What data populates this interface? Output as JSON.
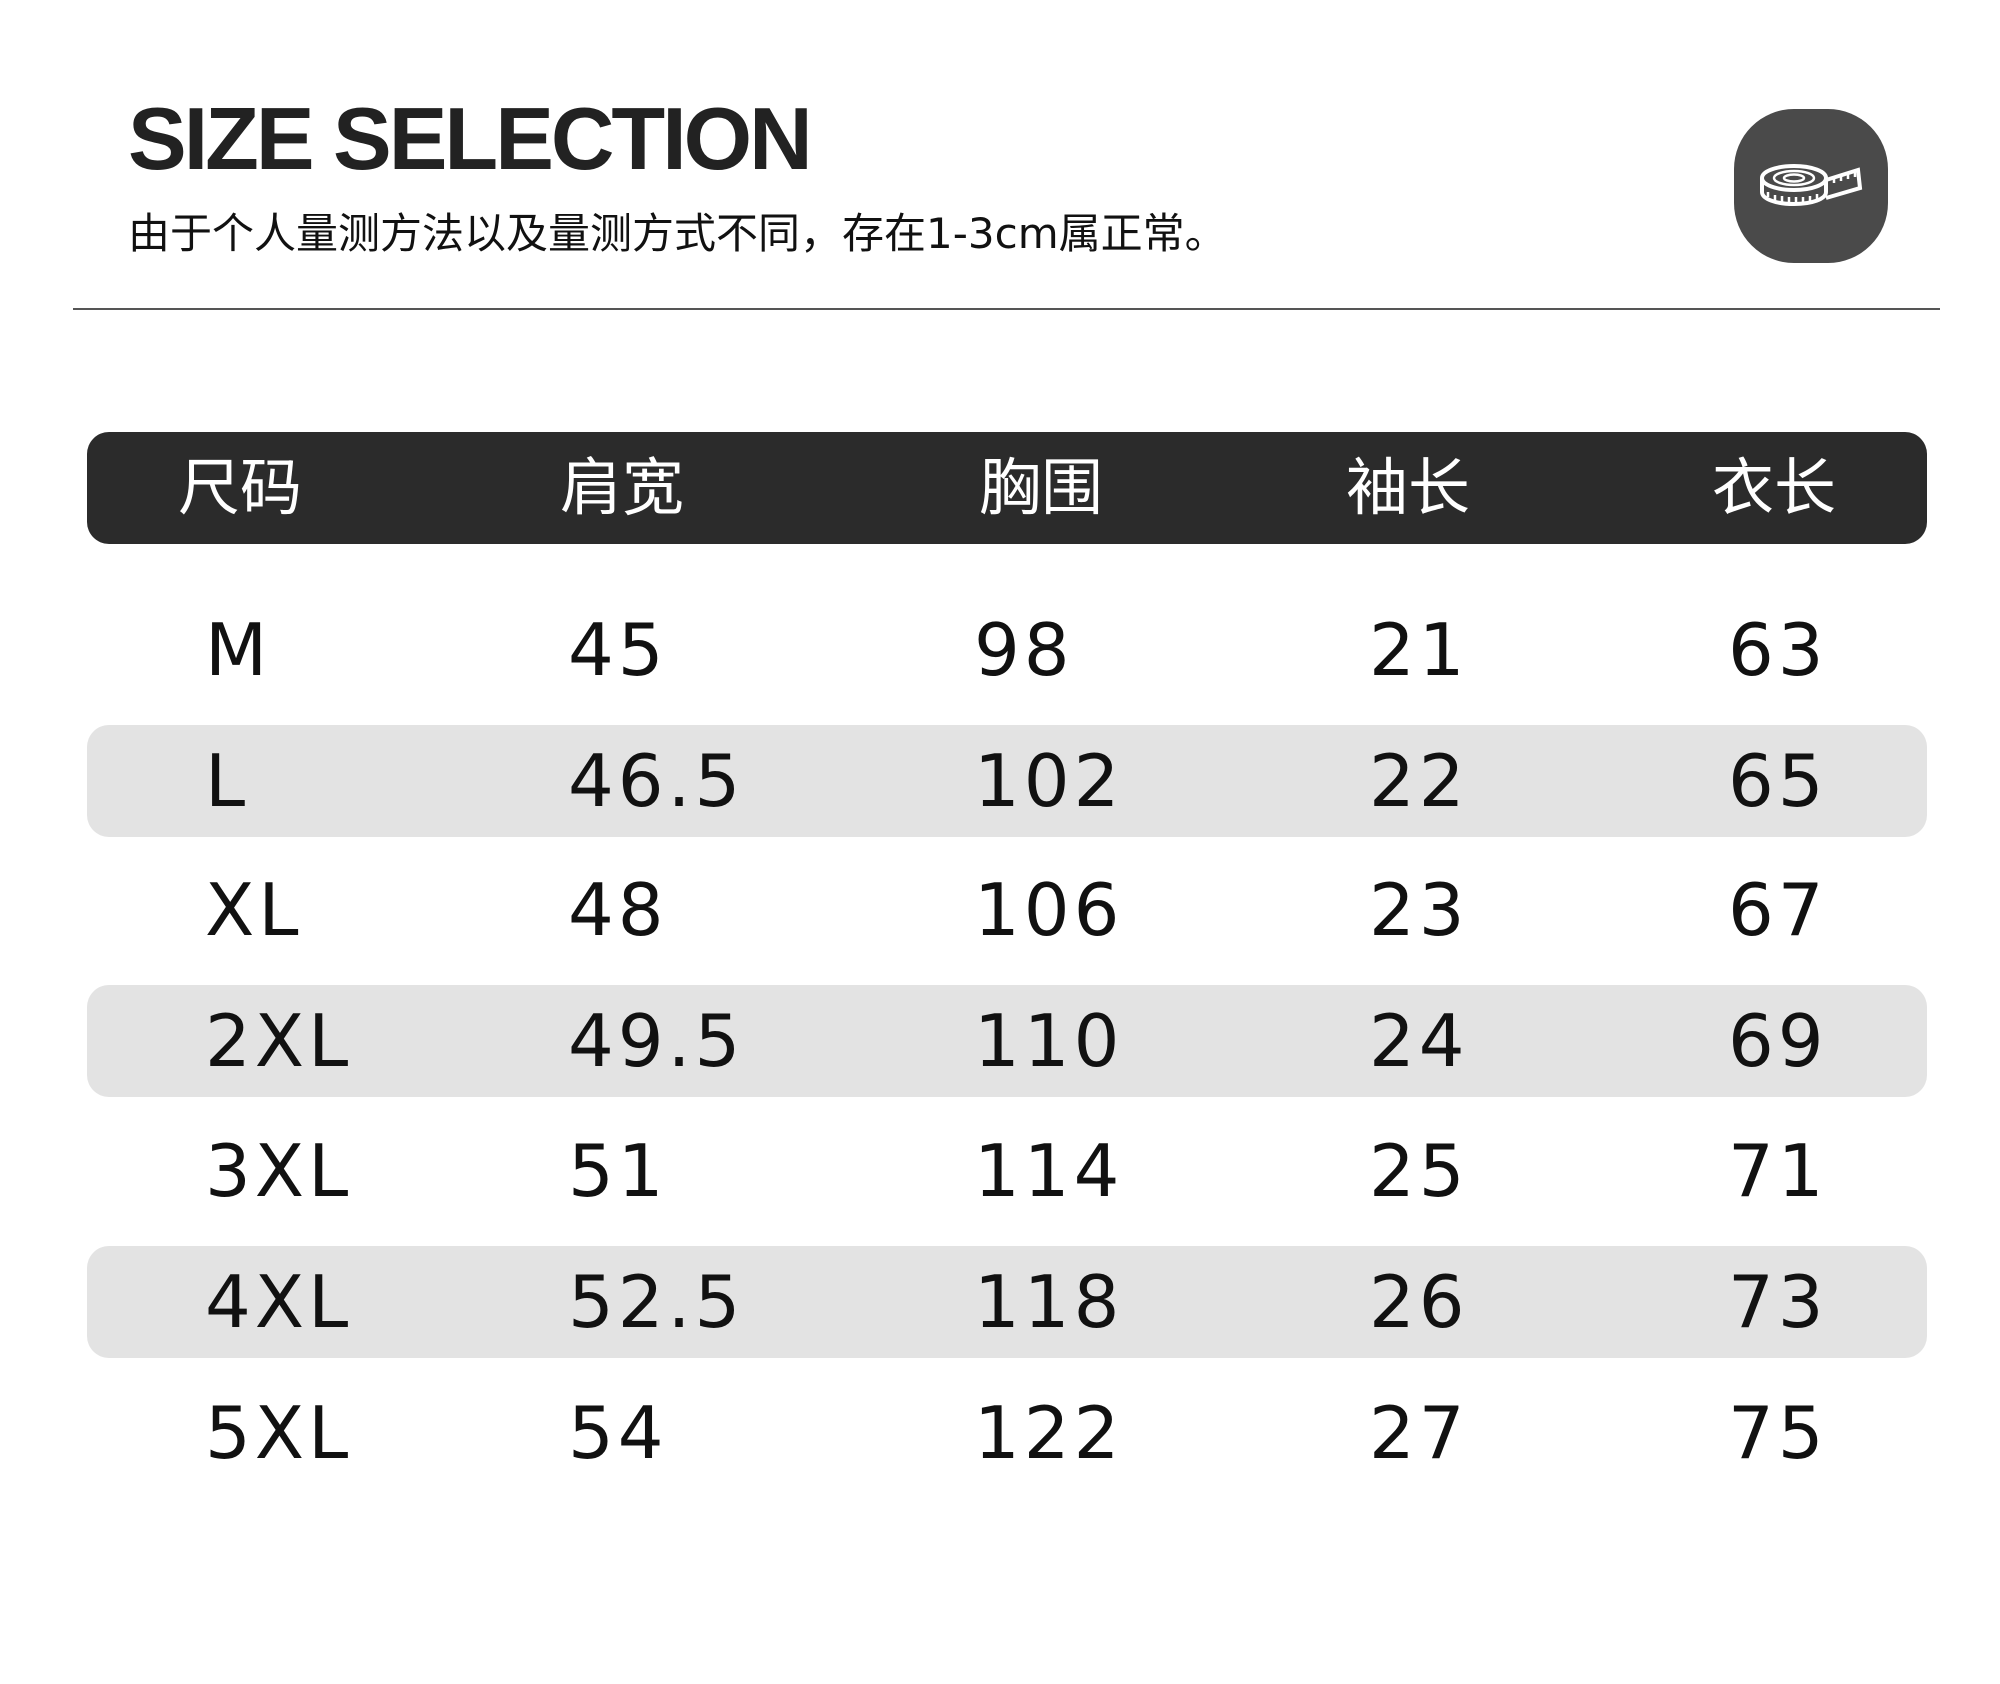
{
  "header": {
    "title": "SIZE SELECTION",
    "subtitle": "由于个人量测方法以及量测方式不同，存在1-3cm属正常。",
    "icon": "measuring-tape-icon"
  },
  "table": {
    "columns": [
      "尺码",
      "肩宽",
      "胸围",
      "袖长",
      "衣长"
    ],
    "rows": [
      [
        "M",
        "45",
        "98",
        "21",
        "63"
      ],
      [
        "L",
        "46.5",
        "102",
        "22",
        "65"
      ],
      [
        "XL",
        "48",
        "106",
        "23",
        "67"
      ],
      [
        "2XL",
        "49.5",
        "110",
        "24",
        "69"
      ],
      [
        "3XL",
        "51",
        "114",
        "25",
        "71"
      ],
      [
        "4XL",
        "52.5",
        "118",
        "26",
        "73"
      ],
      [
        "5XL",
        "54",
        "122",
        "27",
        "75"
      ]
    ]
  },
  "colors": {
    "header_bg": "#2b2b2b",
    "stripe_bg": "#e3e3e3",
    "badge_bg": "#4a4a4a"
  }
}
